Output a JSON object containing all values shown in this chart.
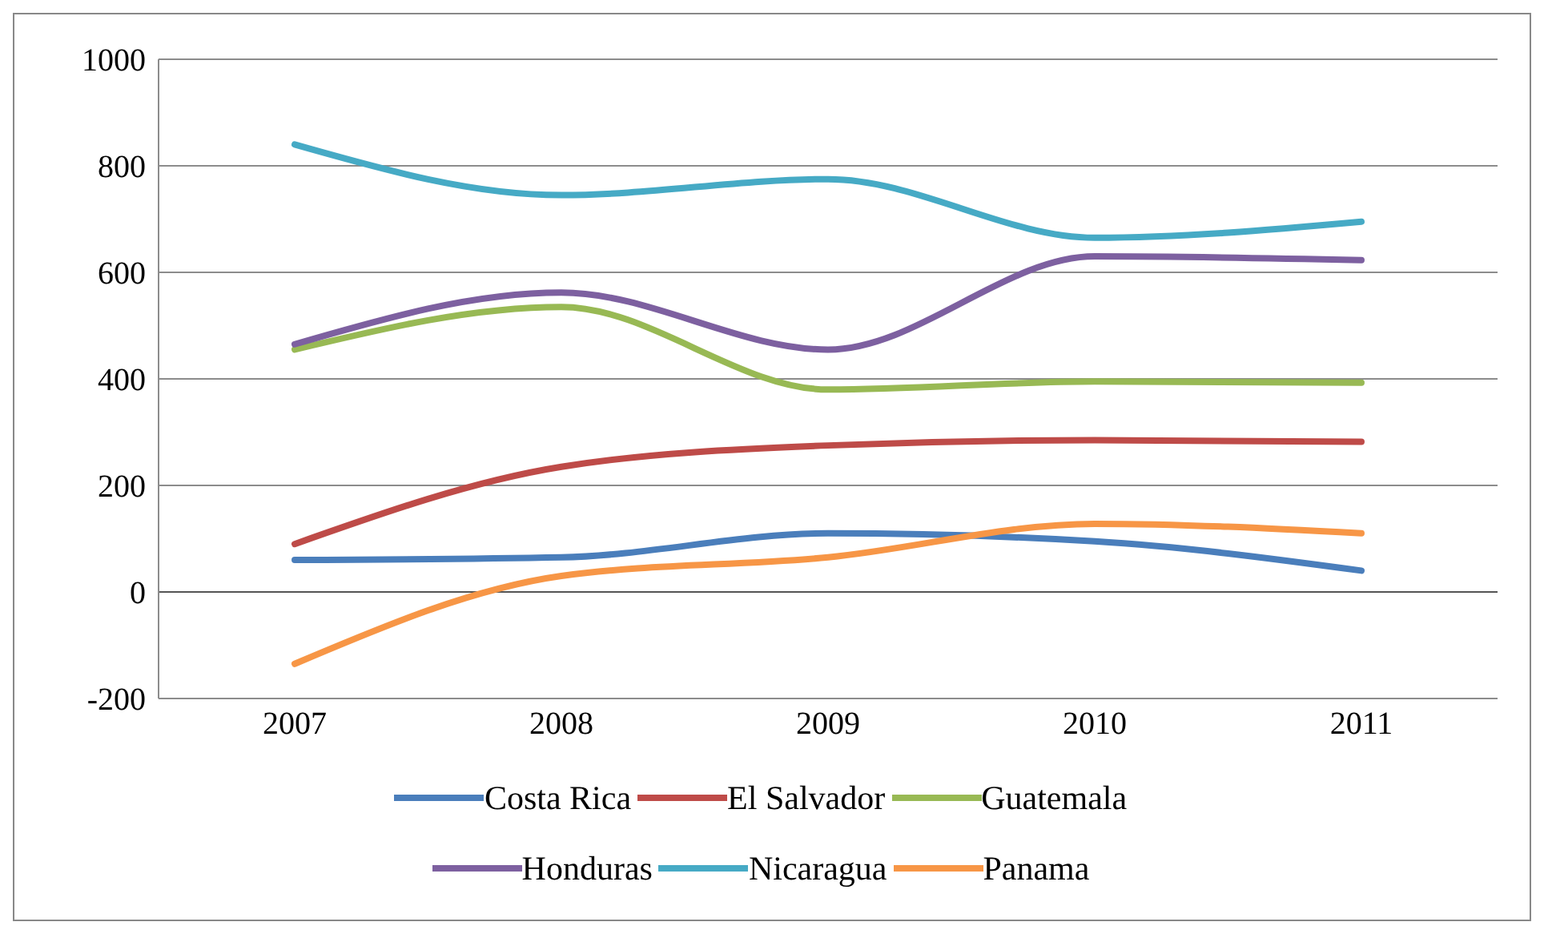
{
  "chart_data": {
    "type": "line",
    "categories": [
      "2007",
      "2008",
      "2009",
      "2010",
      "2011"
    ],
    "series": [
      {
        "name": "Costa Rica",
        "color": "#4a7ebb",
        "values": [
          60,
          65,
          110,
          95,
          40
        ]
      },
      {
        "name": "El Salvador",
        "color": "#be4b48",
        "values": [
          90,
          235,
          275,
          285,
          282
        ]
      },
      {
        "name": "Guatemala",
        "color": "#98b954",
        "values": [
          455,
          535,
          380,
          395,
          393
        ]
      },
      {
        "name": "Honduras",
        "color": "#7d60a0",
        "values": [
          465,
          562,
          455,
          630,
          623
        ]
      },
      {
        "name": "Nicaragua",
        "color": "#46aac5",
        "values": [
          840,
          745,
          775,
          665,
          695
        ]
      },
      {
        "name": "Panama",
        "color": "#f79646",
        "values": [
          -135,
          30,
          65,
          128,
          110
        ]
      }
    ],
    "ylim": [
      -200,
      1000
    ],
    "yticks": [
      -200,
      0,
      200,
      400,
      600,
      800,
      1000
    ],
    "grid": "y",
    "legend": "bottom",
    "marker": "none",
    "line_style": "solid"
  }
}
